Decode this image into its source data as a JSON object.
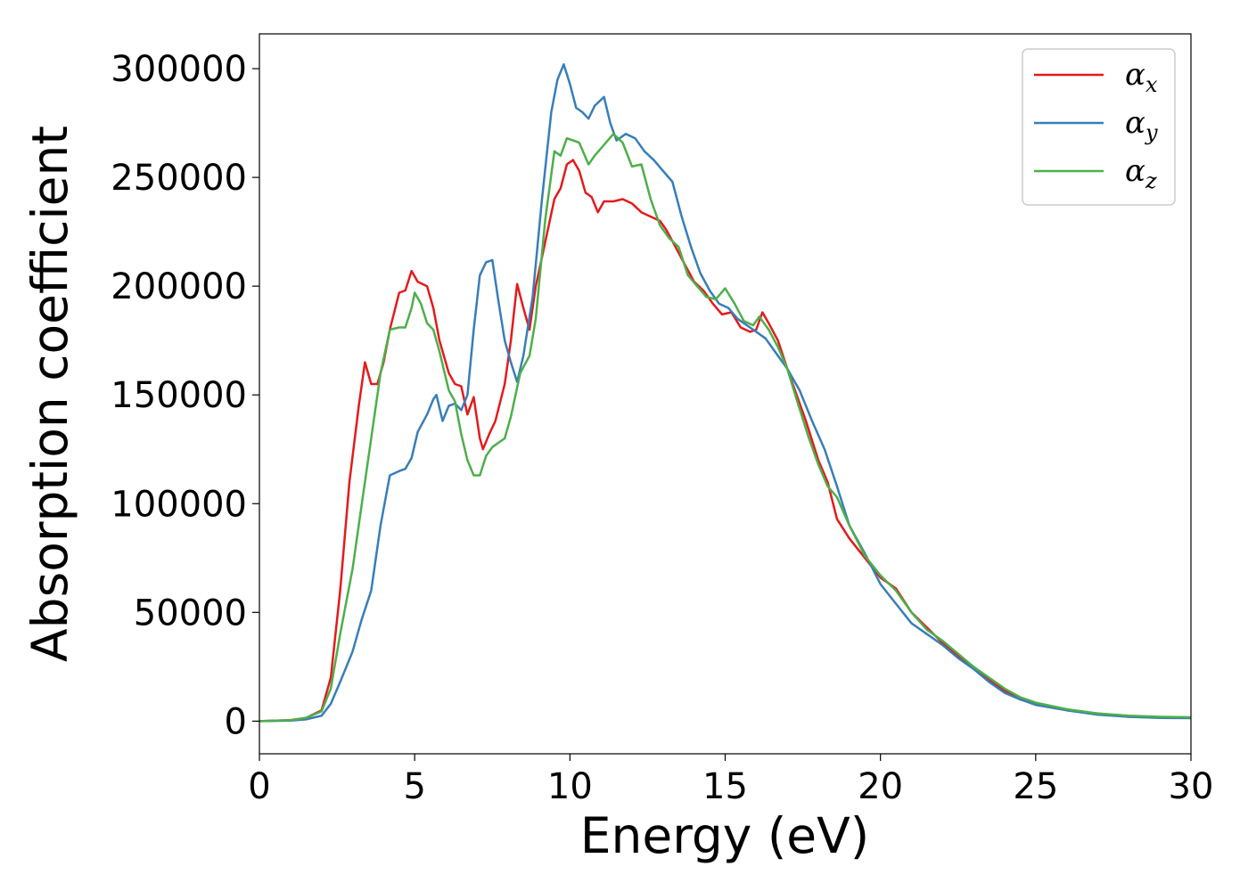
{
  "chart_data": {
    "type": "line",
    "xlabel": "Energy (eV)",
    "ylabel": "Absorption coefficient",
    "xlim": [
      0,
      30
    ],
    "ylim": [
      -15000,
      316000
    ],
    "xticks": [
      0,
      5,
      10,
      15,
      20,
      25,
      30
    ],
    "yticks": [
      0,
      50000,
      100000,
      150000,
      200000,
      250000,
      300000
    ],
    "grid": false,
    "legend_position": "top-right",
    "series": [
      {
        "name": "αx",
        "symbol": "α",
        "subscript": "x",
        "color": "#e41a1c",
        "points": [
          [
            0,
            0
          ],
          [
            1,
            500
          ],
          [
            1.5,
            1500
          ],
          [
            2,
            5000
          ],
          [
            2.3,
            20000
          ],
          [
            2.6,
            60000
          ],
          [
            2.9,
            110000
          ],
          [
            3.2,
            145000
          ],
          [
            3.4,
            165000
          ],
          [
            3.6,
            155000
          ],
          [
            3.8,
            155000
          ],
          [
            4,
            165000
          ],
          [
            4.2,
            180000
          ],
          [
            4.5,
            197000
          ],
          [
            4.7,
            198000
          ],
          [
            4.9,
            207000
          ],
          [
            5.1,
            202000
          ],
          [
            5.4,
            200000
          ],
          [
            5.6,
            190000
          ],
          [
            5.8,
            175000
          ],
          [
            6.1,
            160000
          ],
          [
            6.3,
            155000
          ],
          [
            6.5,
            154000
          ],
          [
            6.7,
            141000
          ],
          [
            6.9,
            149000
          ],
          [
            7.1,
            130000
          ],
          [
            7.2,
            125000
          ],
          [
            7.4,
            132000
          ],
          [
            7.6,
            138000
          ],
          [
            7.9,
            155000
          ],
          [
            8.1,
            175000
          ],
          [
            8.3,
            201000
          ],
          [
            8.5,
            190000
          ],
          [
            8.7,
            180000
          ],
          [
            8.9,
            200000
          ],
          [
            9.2,
            220000
          ],
          [
            9.5,
            240000
          ],
          [
            9.7,
            245000
          ],
          [
            9.9,
            256000
          ],
          [
            10.1,
            258000
          ],
          [
            10.3,
            253000
          ],
          [
            10.5,
            243000
          ],
          [
            10.7,
            241000
          ],
          [
            10.9,
            234000
          ],
          [
            11.1,
            239000
          ],
          [
            11.4,
            239000
          ],
          [
            11.7,
            240000
          ],
          [
            12,
            238000
          ],
          [
            12.3,
            234000
          ],
          [
            12.6,
            232000
          ],
          [
            12.9,
            230000
          ],
          [
            13.1,
            226000
          ],
          [
            13.4,
            218000
          ],
          [
            13.7,
            210000
          ],
          [
            14,
            202000
          ],
          [
            14.3,
            198000
          ],
          [
            14.6,
            192000
          ],
          [
            14.9,
            187000
          ],
          [
            15.2,
            188000
          ],
          [
            15.5,
            181000
          ],
          [
            15.8,
            179000
          ],
          [
            16,
            180000
          ],
          [
            16.2,
            188000
          ],
          [
            16.4,
            183000
          ],
          [
            16.7,
            175000
          ],
          [
            17,
            162000
          ],
          [
            17.3,
            150000
          ],
          [
            17.6,
            138000
          ],
          [
            18,
            120000
          ],
          [
            18.3,
            110000
          ],
          [
            18.6,
            93000
          ],
          [
            19,
            84000
          ],
          [
            19.5,
            75000
          ],
          [
            20,
            66000
          ],
          [
            20.5,
            61000
          ],
          [
            21,
            50000
          ],
          [
            21.5,
            43000
          ],
          [
            22,
            36000
          ],
          [
            22.5,
            30000
          ],
          [
            23,
            25000
          ],
          [
            23.5,
            19000
          ],
          [
            24,
            14000
          ],
          [
            24.5,
            10000
          ],
          [
            25,
            8000
          ],
          [
            26,
            5000
          ],
          [
            27,
            3500
          ],
          [
            28,
            2000
          ],
          [
            29,
            1800
          ],
          [
            30,
            1700
          ]
        ]
      },
      {
        "name": "αy",
        "symbol": "α",
        "subscript": "y",
        "color": "#377eb8",
        "points": [
          [
            0,
            0
          ],
          [
            1,
            300
          ],
          [
            1.5,
            800
          ],
          [
            2,
            2500
          ],
          [
            2.3,
            8000
          ],
          [
            2.6,
            18000
          ],
          [
            3,
            32000
          ],
          [
            3.3,
            47000
          ],
          [
            3.6,
            60000
          ],
          [
            3.9,
            90000
          ],
          [
            4.2,
            113000
          ],
          [
            4.5,
            115000
          ],
          [
            4.7,
            116000
          ],
          [
            4.9,
            121000
          ],
          [
            5.1,
            133000
          ],
          [
            5.4,
            141000
          ],
          [
            5.6,
            148000
          ],
          [
            5.7,
            150000
          ],
          [
            5.9,
            138000
          ],
          [
            6.1,
            145000
          ],
          [
            6.3,
            146000
          ],
          [
            6.5,
            143000
          ],
          [
            6.7,
            150000
          ],
          [
            6.9,
            180000
          ],
          [
            7.1,
            205000
          ],
          [
            7.3,
            211000
          ],
          [
            7.5,
            212000
          ],
          [
            7.7,
            193000
          ],
          [
            7.9,
            175000
          ],
          [
            8.1,
            165000
          ],
          [
            8.3,
            156000
          ],
          [
            8.5,
            168000
          ],
          [
            8.8,
            195000
          ],
          [
            9.1,
            240000
          ],
          [
            9.4,
            280000
          ],
          [
            9.6,
            295000
          ],
          [
            9.8,
            302000
          ],
          [
            10,
            293000
          ],
          [
            10.2,
            282000
          ],
          [
            10.4,
            280000
          ],
          [
            10.6,
            277000
          ],
          [
            10.8,
            283000
          ],
          [
            11.1,
            287000
          ],
          [
            11.3,
            275000
          ],
          [
            11.5,
            267000
          ],
          [
            11.8,
            270000
          ],
          [
            12.1,
            268000
          ],
          [
            12.4,
            262000
          ],
          [
            12.7,
            258000
          ],
          [
            13,
            253000
          ],
          [
            13.3,
            248000
          ],
          [
            13.6,
            232000
          ],
          [
            13.9,
            218000
          ],
          [
            14.2,
            206000
          ],
          [
            14.5,
            198000
          ],
          [
            14.8,
            192000
          ],
          [
            15.1,
            190000
          ],
          [
            15.4,
            185000
          ],
          [
            15.7,
            182000
          ],
          [
            16,
            179000
          ],
          [
            16.3,
            176000
          ],
          [
            16.6,
            170000
          ],
          [
            17,
            162000
          ],
          [
            17.4,
            152000
          ],
          [
            17.8,
            138000
          ],
          [
            18.2,
            125000
          ],
          [
            18.6,
            108000
          ],
          [
            19,
            90000
          ],
          [
            19.5,
            77000
          ],
          [
            20,
            63000
          ],
          [
            20.5,
            54000
          ],
          [
            21,
            45000
          ],
          [
            21.5,
            40000
          ],
          [
            22,
            35000
          ],
          [
            22.5,
            29000
          ],
          [
            23,
            24000
          ],
          [
            23.5,
            18000
          ],
          [
            24,
            13000
          ],
          [
            24.5,
            10000
          ],
          [
            25,
            7500
          ],
          [
            26,
            5000
          ],
          [
            27,
            3000
          ],
          [
            28,
            2000
          ],
          [
            29,
            1500
          ],
          [
            30,
            1400
          ]
        ]
      },
      {
        "name": "αz",
        "symbol": "α",
        "subscript": "z",
        "color": "#4daf4a",
        "points": [
          [
            0,
            0
          ],
          [
            1,
            500
          ],
          [
            1.5,
            1500
          ],
          [
            2,
            4500
          ],
          [
            2.3,
            15000
          ],
          [
            2.6,
            40000
          ],
          [
            3,
            70000
          ],
          [
            3.3,
            100000
          ],
          [
            3.6,
            130000
          ],
          [
            3.9,
            160000
          ],
          [
            4.2,
            180000
          ],
          [
            4.5,
            181000
          ],
          [
            4.7,
            181000
          ],
          [
            4.9,
            190000
          ],
          [
            5,
            197000
          ],
          [
            5.2,
            192000
          ],
          [
            5.4,
            183000
          ],
          [
            5.6,
            180000
          ],
          [
            5.8,
            170000
          ],
          [
            6.1,
            152000
          ],
          [
            6.3,
            147000
          ],
          [
            6.5,
            132000
          ],
          [
            6.7,
            120000
          ],
          [
            6.9,
            113000
          ],
          [
            7.1,
            113000
          ],
          [
            7.3,
            122000
          ],
          [
            7.5,
            126000
          ],
          [
            7.7,
            128000
          ],
          [
            7.9,
            130000
          ],
          [
            8.1,
            140000
          ],
          [
            8.4,
            160000
          ],
          [
            8.7,
            168000
          ],
          [
            8.9,
            185000
          ],
          [
            9.2,
            230000
          ],
          [
            9.5,
            262000
          ],
          [
            9.7,
            260000
          ],
          [
            9.9,
            268000
          ],
          [
            10.1,
            267000
          ],
          [
            10.3,
            266000
          ],
          [
            10.6,
            256000
          ],
          [
            10.8,
            260000
          ],
          [
            11.1,
            265000
          ],
          [
            11.4,
            270000
          ],
          [
            11.7,
            266000
          ],
          [
            12,
            255000
          ],
          [
            12.3,
            256000
          ],
          [
            12.6,
            240000
          ],
          [
            12.9,
            228000
          ],
          [
            13.2,
            222000
          ],
          [
            13.5,
            218000
          ],
          [
            13.8,
            205000
          ],
          [
            14.1,
            200000
          ],
          [
            14.4,
            195000
          ],
          [
            14.7,
            194000
          ],
          [
            15,
            199000
          ],
          [
            15.3,
            192000
          ],
          [
            15.6,
            184000
          ],
          [
            15.9,
            182000
          ],
          [
            16.1,
            186000
          ],
          [
            16.4,
            180000
          ],
          [
            16.7,
            172000
          ],
          [
            17,
            162000
          ],
          [
            17.3,
            148000
          ],
          [
            17.7,
            130000
          ],
          [
            18,
            118000
          ],
          [
            18.3,
            108000
          ],
          [
            18.6,
            103000
          ],
          [
            19,
            90000
          ],
          [
            19.5,
            76000
          ],
          [
            20,
            67000
          ],
          [
            20.5,
            60000
          ],
          [
            21,
            50000
          ],
          [
            21.5,
            42000
          ],
          [
            22,
            37000
          ],
          [
            22.5,
            31000
          ],
          [
            23,
            25000
          ],
          [
            23.5,
            20000
          ],
          [
            24,
            15000
          ],
          [
            24.5,
            11000
          ],
          [
            25,
            8500
          ],
          [
            26,
            5500
          ],
          [
            27,
            3500
          ],
          [
            28,
            2500
          ],
          [
            29,
            2000
          ],
          [
            30,
            1800
          ]
        ]
      }
    ]
  }
}
